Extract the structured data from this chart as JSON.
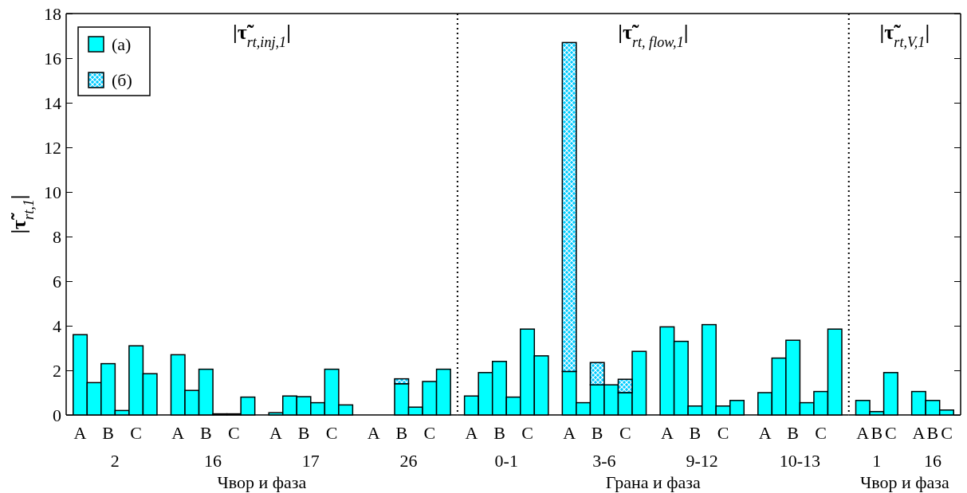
{
  "chart_data": [
    {
      "type": "bar",
      "stacked": true,
      "title": "|τ̃$_{rt,inj,1}$|",
      "xlabel": "Чвор и фаза",
      "ylabel": "|τ̃$_{rt,1}$|",
      "annotations": [
        "2",
        "16",
        "17",
        "26"
      ],
      "categories": [
        "A",
        null,
        "B",
        null,
        "C",
        null,
        null,
        "A",
        null,
        "B",
        null,
        "C",
        null,
        null,
        "A",
        null,
        "B",
        null,
        "C",
        null,
        null,
        "A",
        null,
        "B",
        null,
        "C",
        null
      ],
      "series": [
        {
          "name": "(a)",
          "color": "#00ffff",
          "values": [
            3.6,
            1.45,
            2.3,
            0.2,
            3.1,
            1.85,
            null,
            2.7,
            1.1,
            2.05,
            0.05,
            0.05,
            0.8,
            null,
            0.1,
            0.85,
            0.82,
            0.55,
            2.05,
            0.45,
            null,
            0,
            0,
            1.4,
            0.35,
            1.5,
            2.05
          ]
        },
        {
          "name": "(б)",
          "color": "#00ccff",
          "values": [
            null,
            null,
            null,
            null,
            null,
            null,
            null,
            null,
            null,
            null,
            null,
            null,
            null,
            null,
            null,
            null,
            null,
            null,
            null,
            null,
            null,
            null,
            null,
            0.22,
            null,
            null,
            null
          ]
        }
      ],
      "ylim": [
        0,
        18
      ],
      "yticks": [
        0,
        2,
        4,
        6,
        8,
        10,
        12,
        14,
        16,
        18
      ],
      "legend": "top left"
    },
    {
      "type": "bar",
      "stacked": true,
      "title": "|τ̃$_{rt, flow,1}$|",
      "xlabel": "Грана и фаза",
      "annotations": [
        "0-1",
        "3-6",
        "9-12",
        "10-13"
      ],
      "categories": [
        "A",
        null,
        "B",
        null,
        "C",
        null,
        null,
        "A",
        null,
        "B",
        null,
        "C",
        null,
        null,
        "A",
        null,
        "B",
        null,
        "C",
        null,
        null,
        "A",
        null,
        "B",
        null,
        "C",
        null
      ],
      "series": [
        {
          "color": "#00ffff",
          "values": [
            0.85,
            1.9,
            2.4,
            0.8,
            3.85,
            2.65,
            null,
            1.95,
            0.55,
            1.35,
            1.35,
            1.0,
            2.85,
            null,
            3.95,
            3.3,
            0.4,
            4.05,
            0.4,
            0.65,
            null,
            1.0,
            2.55,
            3.35,
            0.55,
            1.05,
            3.85
          ]
        },
        {
          "color": "#00ccff",
          "values": [
            null,
            null,
            null,
            null,
            null,
            null,
            null,
            14.75,
            null,
            1.0,
            null,
            0.6,
            null,
            null,
            null,
            null,
            null,
            null,
            null,
            null,
            null,
            null,
            null,
            null,
            null,
            null,
            null
          ]
        }
      ],
      "ylim": [
        0,
        18
      ],
      "yticks": [
        0,
        2,
        4,
        6,
        8,
        10,
        12,
        14,
        16,
        18
      ],
      "tick_labels": "x"
    },
    {
      "type": "bar",
      "title": "|τ̃$_{rt,V,1}$|",
      "xlabel": "Чвор и фаза",
      "annotations": [
        "1",
        "16"
      ],
      "categories": [
        "A",
        "B",
        "C",
        null,
        "A",
        "B",
        "C"
      ],
      "series": [
        {
          "color": "#00ffff",
          "values": [
            0.65,
            0.15,
            1.9,
            null,
            1.05,
            0.65,
            0.22
          ]
        }
      ],
      "ylim": [
        0,
        18
      ],
      "yticks": [
        0,
        2,
        4,
        6,
        8,
        10,
        12,
        14,
        16,
        18
      ],
      "tick_labels": "x"
    }
  ]
}
